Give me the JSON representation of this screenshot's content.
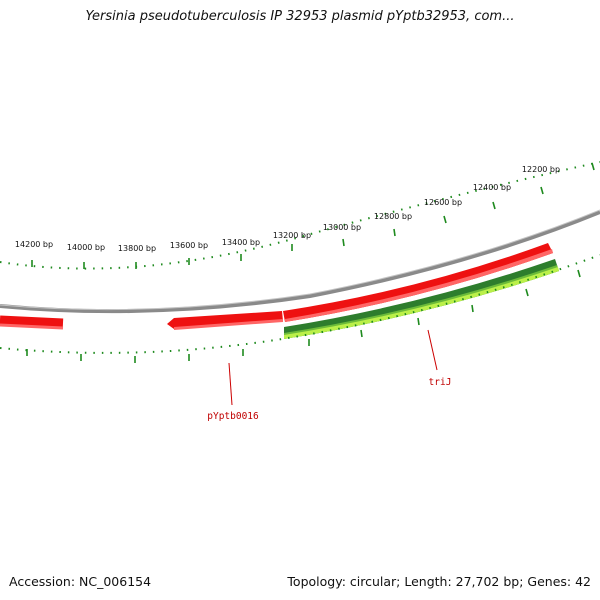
{
  "header": {
    "title": "Yersinia pseudotuberculosis IP 32953 plasmid pYptb32953, com..."
  },
  "footer": {
    "accession": "Accession: NC_006154",
    "summary": "Topology: circular; Length: 27,702 bp; Genes: 42"
  },
  "map": {
    "colors": {
      "backbone": "#8a8a8a",
      "gene_forward": "#ee1111",
      "gene_highlight": "#ff6666",
      "cds_dark": "#2d7d2d",
      "cds_light": "#bbf04a",
      "tick": "#1e8a1e",
      "label_line": "#cc0000"
    },
    "tick_labels": [
      "14200 bp",
      "14000 bp",
      "13800 bp",
      "13600 bp",
      "13400 bp",
      "13200 bp",
      "13000 bp",
      "12800 bp",
      "12600 bp",
      "12400 bp",
      "12200 bp"
    ],
    "genes": [
      {
        "name": "pYptb0016",
        "strand": "reverse"
      },
      {
        "name": "triJ",
        "strand": "forward"
      }
    ]
  }
}
